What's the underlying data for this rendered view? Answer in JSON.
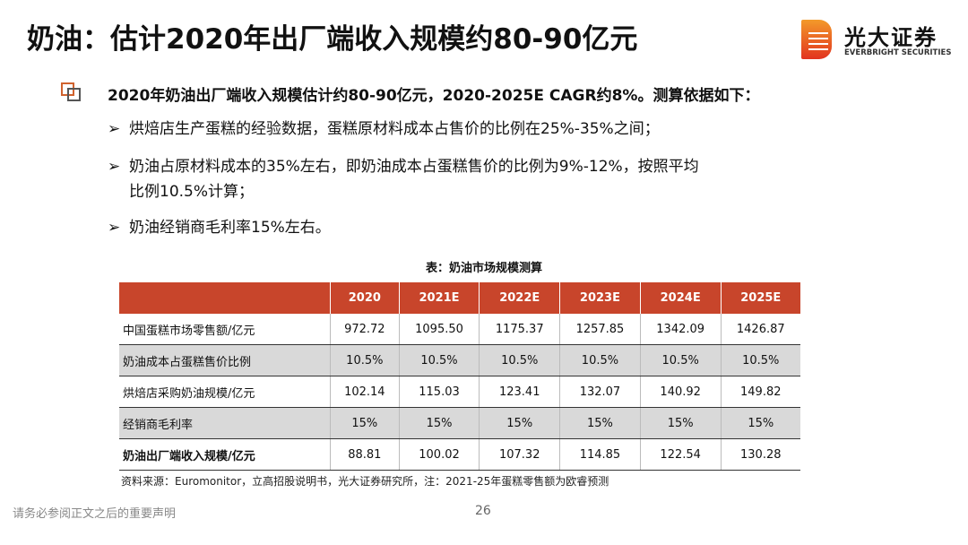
{
  "title": "奶油：估计2020年出厂端收入规模约80-90亿元",
  "logo": {
    "cn": "光大证券",
    "en": "EVERBRIGHT SECURITIES"
  },
  "lead": "2020年奶油出厂端收入规模估计约80-90亿元，2020-2025E CAGR约8%。测算依据如下：",
  "bullets": [
    "烘焙店生产蛋糕的经验数据，蛋糕原材料成本占售价的比例在25%-35%之间；",
    "奶油占原材料成本的35%左右，即奶油成本占蛋糕售价的比例为9%-12%，按照平均比例10.5%计算；",
    "奶油经销商毛利率15%左右。"
  ],
  "bullet_marker": "➢",
  "table": {
    "caption": "表：奶油市场规模测算",
    "headers": [
      "",
      "2020",
      "2021E",
      "2022E",
      "2023E",
      "2024E",
      "2025E"
    ],
    "rows": [
      [
        "中国蛋糕市场零售额/亿元",
        "972.72",
        "1095.50",
        "1175.37",
        "1257.85",
        "1342.09",
        "1426.87"
      ],
      [
        "奶油成本占蛋糕售价比例",
        "10.5%",
        "10.5%",
        "10.5%",
        "10.5%",
        "10.5%",
        "10.5%"
      ],
      [
        "烘焙店采购奶油规模/亿元",
        "102.14",
        "115.03",
        "123.41",
        "132.07",
        "140.92",
        "149.82"
      ],
      [
        "经销商毛利率",
        "15%",
        "15%",
        "15%",
        "15%",
        "15%",
        "15%"
      ],
      [
        "奶油出厂端收入规模/亿元",
        "88.81",
        "100.02",
        "107.32",
        "114.85",
        "122.54",
        "130.28"
      ]
    ]
  },
  "source": "资料来源：Euromonitor，立高招股说明书，光大证券研究所，注：2021-25年蛋糕零售额为欧睿预测",
  "footer": "请务必参阅正文之后的重要声明",
  "page": "26",
  "colors": {
    "header": "#c8452b",
    "stripe": "#d9d9d9"
  }
}
